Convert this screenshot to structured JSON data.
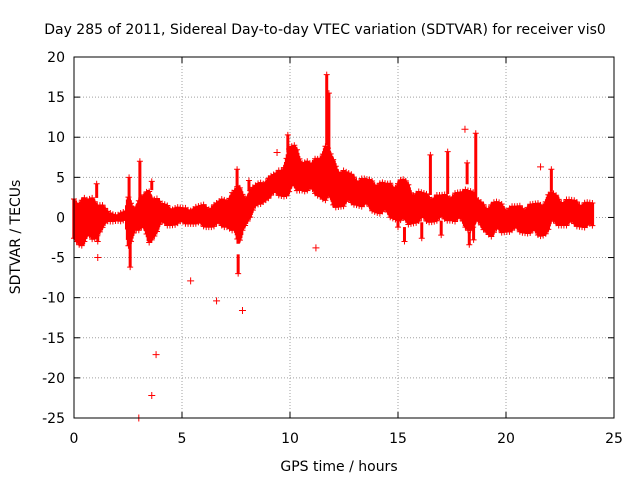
{
  "chart_data": {
    "type": "scatter",
    "title": "Day 285 of 2011, Sidereal Day-to-day VTEC variation (SDTVAR) for receiver vis0",
    "xlabel": "GPS time / hours",
    "ylabel": "SDTVAR / TECUs",
    "xlim": [
      0,
      25
    ],
    "ylim": [
      -25,
      20
    ],
    "xticks": [
      0,
      5,
      10,
      15,
      20,
      25
    ],
    "yticks": [
      20,
      15,
      10,
      5,
      0,
      -5,
      -10,
      -15,
      -20,
      -25
    ],
    "grid": true,
    "marker": "+",
    "series_color": "#ff0000",
    "envelope": {
      "description": "dense band of samples (upper and lower bounds per time)",
      "x": [
        0,
        0.3,
        0.6,
        1.0,
        1.3,
        1.6,
        2.0,
        2.4,
        2.5,
        2.8,
        3.1,
        3.5,
        3.7,
        4.0,
        4.5,
        5.0,
        5.5,
        6.0,
        6.4,
        6.8,
        7.1,
        7.4,
        7.6,
        7.8,
        8.0,
        8.3,
        8.6,
        9.0,
        9.4,
        9.7,
        10.0,
        10.2,
        10.5,
        11.0,
        11.4,
        11.7,
        12.0,
        12.5,
        13.0,
        13.5,
        14.0,
        14.5,
        15.0,
        15.3,
        15.6,
        16.0,
        16.5,
        17.0,
        17.5,
        18.0,
        18.3,
        18.6,
        19.0,
        19.3,
        19.6,
        20.0,
        20.5,
        21.0,
        21.5,
        21.8,
        22.1,
        22.5,
        23.0,
        23.5,
        24.0
      ],
      "upper": [
        2.3,
        2.8,
        2.2,
        2.6,
        1.6,
        0.6,
        0.4,
        0.8,
        2.6,
        1.6,
        2.4,
        3.6,
        3.2,
        1.8,
        1.4,
        1.2,
        1.2,
        1.6,
        1.4,
        2.2,
        2.8,
        3.2,
        4.0,
        3.2,
        3.0,
        3.8,
        4.4,
        5.0,
        5.6,
        6.8,
        8.8,
        9.0,
        7.6,
        6.6,
        8.4,
        9.0,
        7.2,
        5.8,
        5.2,
        4.8,
        4.6,
        4.2,
        4.6,
        4.8,
        3.6,
        3.2,
        2.8,
        2.8,
        3.0,
        3.2,
        4.6,
        2.4,
        1.6,
        1.8,
        2.0,
        1.4,
        1.4,
        1.6,
        1.8,
        2.4,
        3.2,
        2.4,
        2.2,
        2.0,
        1.8
      ],
      "lower": [
        -2.6,
        -3.6,
        -3.2,
        -2.6,
        -1.4,
        -0.6,
        -0.4,
        -0.6,
        -4.2,
        -1.6,
        -1.6,
        -3.2,
        -2.4,
        -1.0,
        -1.0,
        -0.8,
        -0.8,
        -1.2,
        -1.2,
        -1.2,
        -1.2,
        -1.8,
        -4.6,
        -1.6,
        -0.6,
        0.6,
        1.6,
        2.4,
        2.8,
        2.6,
        2.8,
        3.2,
        3.4,
        3.0,
        2.6,
        1.8,
        1.2,
        1.4,
        1.6,
        1.2,
        0.6,
        0.2,
        -0.4,
        -1.2,
        -0.8,
        -0.6,
        -0.6,
        -0.4,
        -0.4,
        -0.8,
        -1.8,
        -0.8,
        -1.6,
        -2.4,
        -2.0,
        -1.8,
        -1.8,
        -2.0,
        -2.4,
        -2.2,
        -1.0,
        -1.0,
        -1.0,
        -1.2,
        -1.4
      ]
    },
    "spikes": [
      {
        "x": 1.05,
        "y": 4.2
      },
      {
        "x": 1.1,
        "y": -3.0
      },
      {
        "x": 2.55,
        "y": 5.0
      },
      {
        "x": 2.6,
        "y": -6.2
      },
      {
        "x": 3.05,
        "y": 7.0
      },
      {
        "x": 3.6,
        "y": 4.5
      },
      {
        "x": 7.55,
        "y": 6.0
      },
      {
        "x": 7.6,
        "y": -7.0
      },
      {
        "x": 8.1,
        "y": 4.6
      },
      {
        "x": 9.9,
        "y": 10.3
      },
      {
        "x": 11.7,
        "y": 17.8
      },
      {
        "x": 11.8,
        "y": 15.5
      },
      {
        "x": 15.0,
        "y": -1.2
      },
      {
        "x": 15.3,
        "y": -3.0
      },
      {
        "x": 16.5,
        "y": 7.8
      },
      {
        "x": 16.1,
        "y": -2.6
      },
      {
        "x": 17.3,
        "y": 8.2
      },
      {
        "x": 17.0,
        "y": -2.2
      },
      {
        "x": 18.2,
        "y": 6.8
      },
      {
        "x": 18.3,
        "y": -3.4
      },
      {
        "x": 18.6,
        "y": 10.5
      },
      {
        "x": 18.5,
        "y": -2.8
      },
      {
        "x": 22.1,
        "y": 6.0
      }
    ],
    "outliers": [
      {
        "x": 3.0,
        "y": -25.0
      },
      {
        "x": 3.6,
        "y": -22.2
      },
      {
        "x": 3.8,
        "y": -17.1
      },
      {
        "x": 5.4,
        "y": -7.9
      },
      {
        "x": 6.6,
        "y": -10.4
      },
      {
        "x": 7.8,
        "y": -11.6
      },
      {
        "x": 1.1,
        "y": -5.0
      },
      {
        "x": 9.4,
        "y": 8.1
      },
      {
        "x": 11.2,
        "y": -3.8
      },
      {
        "x": 18.1,
        "y": 11.0
      },
      {
        "x": 21.6,
        "y": 6.3
      }
    ]
  }
}
